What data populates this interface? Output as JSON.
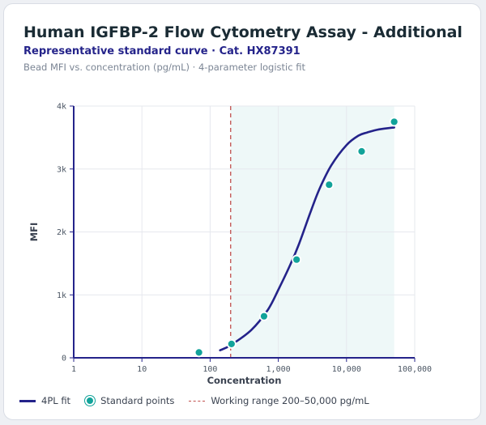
{
  "header": {
    "title": "Human IGFBP-2 Flow Cytometry Assay - Additional",
    "subtitle": "Representative standard curve · Cat. HX87391",
    "caption": "Bead MFI vs. concentration (pg/mL) · 4-parameter logistic fit"
  },
  "chart_data": {
    "type": "scatter",
    "xlabel": "Concentration",
    "ylabel": "MFI",
    "x_scale": "log",
    "xlim": [
      1,
      100000
    ],
    "ylim": [
      0,
      4000
    ],
    "x_ticks": [
      1,
      10,
      100,
      1000,
      10000,
      100000
    ],
    "x_tick_labels": [
      "1",
      "10",
      "100",
      "1,000",
      "10,000",
      "100,000"
    ],
    "y_ticks": [
      0,
      1000,
      2000,
      3000,
      4000
    ],
    "y_tick_labels": [
      "0",
      "1k",
      "2k",
      "3k",
      "4k"
    ],
    "grid": true,
    "legend_position": "bottom-left",
    "series": [
      {
        "name": "Standard points",
        "kind": "points",
        "color": "#12a39a",
        "x": [
          68.6,
          206,
          617,
          1852,
          5556,
          16667,
          50000
        ],
        "y": [
          85,
          220,
          660,
          1560,
          2750,
          3280,
          3750
        ]
      },
      {
        "name": "4PL fit",
        "kind": "curve",
        "color": "#24238a",
        "x": [
          140,
          200,
          400,
          700,
          1000,
          1500,
          2000,
          3000,
          4000,
          6000,
          10000,
          15000,
          20000,
          30000,
          50000
        ],
        "y": [
          120,
          200,
          440,
          760,
          1080,
          1480,
          1800,
          2330,
          2680,
          3060,
          3380,
          3530,
          3580,
          3630,
          3660
        ]
      }
    ],
    "working_range": {
      "label": "Working range 200–50,000 pg/mL",
      "from": 200,
      "to": 50000,
      "line_color": "#c0504d",
      "fill_color": "#eef8f8"
    }
  }
}
